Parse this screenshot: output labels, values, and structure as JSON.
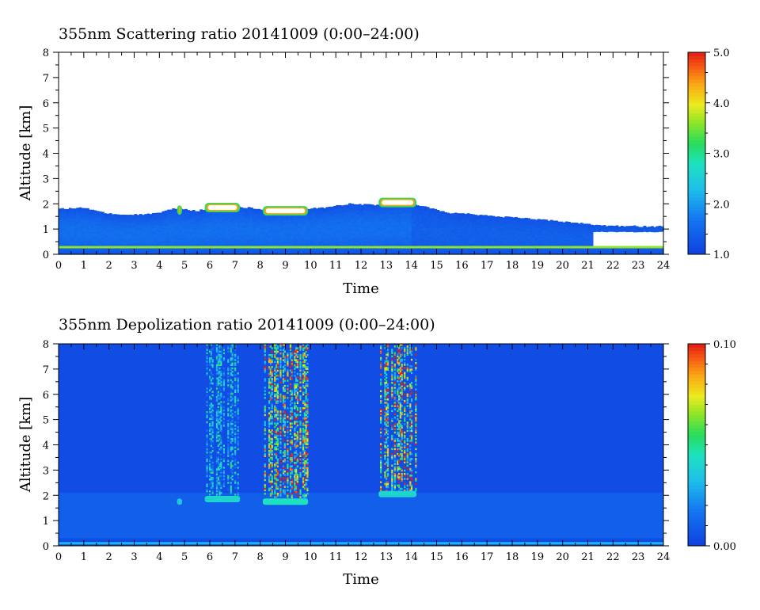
{
  "chart_data": [
    {
      "type": "heatmap",
      "title": "355nm Scattering ratio  20141009 (0:00–24:00)",
      "xlabel": "Time",
      "ylabel": "Altitude [km]",
      "xlim": [
        0,
        24
      ],
      "ylim": [
        0,
        8
      ],
      "xticks": [
        "0",
        "1",
        "2",
        "3",
        "4",
        "5",
        "6",
        "7",
        "8",
        "9",
        "10",
        "11",
        "12",
        "13",
        "14",
        "15",
        "16",
        "17",
        "18",
        "19",
        "20",
        "21",
        "22",
        "23",
        "24"
      ],
      "yticks": [
        "0",
        "1",
        "2",
        "3",
        "4",
        "5",
        "6",
        "7",
        "8"
      ],
      "colorbar": {
        "min": 1.0,
        "max": 5.0,
        "tick_labels": [
          "5.0",
          "4.0",
          "3.0",
          "2.0",
          "1.0"
        ],
        "tick_values": [
          5.0,
          4.0,
          3.0,
          2.0,
          1.0
        ]
      },
      "layer_top_km": [
        [
          0.0,
          1.8
        ],
        [
          1.0,
          1.85
        ],
        [
          1.5,
          1.7
        ],
        [
          2.5,
          1.55
        ],
        [
          4.0,
          1.62
        ],
        [
          4.5,
          1.82
        ],
        [
          5.5,
          1.72
        ],
        [
          6.5,
          1.95
        ],
        [
          7.5,
          1.85
        ],
        [
          8.5,
          1.72
        ],
        [
          9.5,
          1.8
        ],
        [
          10.5,
          1.85
        ],
        [
          11.5,
          2.0
        ],
        [
          12.5,
          1.95
        ],
        [
          13.5,
          2.1
        ],
        [
          14.5,
          1.9
        ],
        [
          15.5,
          1.65
        ],
        [
          17.0,
          1.55
        ],
        [
          18.5,
          1.42
        ],
        [
          20.0,
          1.3
        ],
        [
          21.0,
          1.22
        ],
        [
          21.3,
          1.15
        ],
        [
          22.5,
          1.12
        ],
        [
          24.0,
          1.1
        ]
      ],
      "cloud_patches": [
        {
          "t_start": 4.7,
          "t_end": 4.9,
          "alt_km": 1.75,
          "scattering_ratio": 3.5
        },
        {
          "t_start": 5.8,
          "t_end": 7.2,
          "alt_km": 1.85,
          "scattering_ratio": 5.0
        },
        {
          "t_start": 8.1,
          "t_end": 9.9,
          "alt_km": 1.72,
          "scattering_ratio": 5.0
        },
        {
          "t_start": 12.7,
          "t_end": 14.2,
          "alt_km": 2.05,
          "scattering_ratio": 5.0
        }
      ]
    },
    {
      "type": "heatmap",
      "title": "355nm Depolization ratio  20141009 (0:00–24:00)",
      "xlabel": "Time",
      "ylabel": "Altitude [km]",
      "xlim": [
        0,
        24
      ],
      "ylim": [
        0,
        8
      ],
      "xticks": [
        "0",
        "1",
        "2",
        "3",
        "4",
        "5",
        "6",
        "7",
        "8",
        "9",
        "10",
        "11",
        "12",
        "13",
        "14",
        "15",
        "16",
        "17",
        "18",
        "19",
        "20",
        "21",
        "22",
        "23",
        "24"
      ],
      "yticks": [
        "0",
        "1",
        "2",
        "3",
        "4",
        "5",
        "6",
        "7",
        "8"
      ],
      "colorbar": {
        "min": 0.0,
        "max": 0.1,
        "tick_labels": [
          "0.10",
          "0.00"
        ],
        "tick_values": [
          0.1,
          0.0
        ]
      },
      "noise_columns": [
        {
          "t_start": 5.8,
          "t_end": 7.2,
          "alt_range_km": [
            2.0,
            8.0
          ],
          "max_depol": 0.05
        },
        {
          "t_start": 8.1,
          "t_end": 9.9,
          "alt_range_km": [
            1.9,
            8.0
          ],
          "max_depol": 0.1
        },
        {
          "t_start": 12.7,
          "t_end": 14.2,
          "alt_range_km": [
            2.1,
            8.0
          ],
          "max_depol": 0.1
        }
      ],
      "cloud_patches": [
        {
          "t_start": 4.7,
          "t_end": 4.9,
          "alt_km": 1.75,
          "depol": 0.035
        },
        {
          "t_start": 5.8,
          "t_end": 7.2,
          "alt_km": 1.85,
          "depol": 0.04
        },
        {
          "t_start": 8.1,
          "t_end": 9.9,
          "alt_km": 1.75,
          "depol": 0.045
        },
        {
          "t_start": 12.7,
          "t_end": 14.2,
          "alt_km": 2.05,
          "depol": 0.04
        }
      ],
      "surface_layer": {
        "alt_km": 0.1,
        "depol": 0.03
      }
    }
  ]
}
